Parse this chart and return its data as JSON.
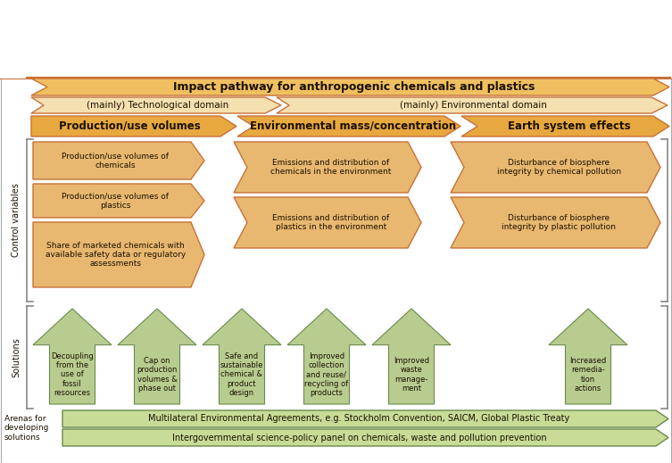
{
  "title_arrow": "Impact pathway for anthropogenic chemicals and plastics",
  "domain_arrow1": "(mainly) Technological domain",
  "domain_arrow2": "(mainly) Environmental domain",
  "stage1": "Production/use volumes",
  "stage2": "Environmental mass/concentration",
  "stage3": "Earth system effects",
  "control_label": "Control variables",
  "solutions_label": "Solutions",
  "arenas_label": "Arenas for\ndeveloping\nsolutions",
  "cv_col1": [
    "Production/use volumes of\nchemicals",
    "Production/use volumes of\nplastics",
    "Share of marketed chemicals with\navailable safety data or regulatory\nassessments"
  ],
  "cv_col2": [
    "Emissions and distribution of\nchemicals in the environment",
    "Emissions and distribution of\nplastics in the environment"
  ],
  "cv_col3": [
    "Disturbance of biosphere\nintegrity by chemical pollution",
    "Disturbance of biosphere\nintegrity by plastic pollution"
  ],
  "solutions": [
    "Decoupling\nfrom the\nuse of\nfossil\nresources",
    "Cap on\nproduction\nvolumes &\nphase out",
    "Safe and\nsustainable\nchemical &\nproduct\ndesign",
    "Improved\ncollection\nand reuse/\nrecycling of\nproducts",
    "Improved\nwaste\nmanage-\nment",
    "Increased\nremedia-\ntion\nactions"
  ],
  "arena1": "Multilateral Environmental Agreements, e.g. Stockholm Convention, SAICM, Global Plastic Treaty",
  "arena2": "Intergovernmental science-policy panel on chemicals, waste and pollution prevention",
  "orange_dark": "#C87137",
  "orange_med": "#E8A840",
  "orange_light": "#F0C060",
  "orange_fill": "#E8B870",
  "orange_pale": "#F5E0B0",
  "green_dark": "#6A8A4A",
  "green_fill": "#B8CC90",
  "green_pale": "#C8DC98",
  "bg_color": "#FFFFFF",
  "text_dark": "#1A1000"
}
